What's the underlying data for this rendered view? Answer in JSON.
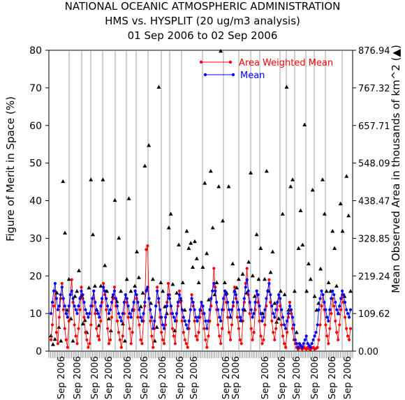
{
  "chart_data": {
    "type": "line",
    "title": [
      "NATIONAL OCEANIC ATMOSPHERIC ADMINISTRATION",
      "HMS vs. HYSPLIT (20 ug/m3 analysis)",
      "01 Sep 2006 to 02 Sep 2006"
    ],
    "ylabel": "Figure of Merit in Space (%)",
    "y2label": "Mean Observed Area in thousands of km^2 (▲)",
    "ylim": [
      0,
      80
    ],
    "y2lim": [
      0,
      876.94
    ],
    "yticks": [
      0,
      10,
      20,
      30,
      40,
      50,
      60,
      70,
      80
    ],
    "y2ticks": [
      "0.00",
      "109.62",
      "219.24",
      "328.85",
      "438.47",
      "548.09",
      "657.71",
      "767.32",
      "876.94"
    ],
    "xtick_label": "Sep 2006",
    "xtick_count": 17,
    "grid": "vertical separators",
    "legend_position": "top-right",
    "colors": {
      "awm": "#ff0000",
      "mean": "#0000ff",
      "area": "#000000"
    },
    "series": [
      {
        "name": "Area Weighted Mean",
        "values": [
          3,
          7,
          12,
          16,
          5,
          2,
          9,
          14,
          18,
          11,
          6,
          3,
          1,
          8,
          15,
          19,
          13,
          7,
          4,
          2,
          6,
          11,
          17,
          14,
          9,
          5,
          3,
          1,
          2,
          7,
          12,
          16,
          10,
          6,
          4,
          3,
          8,
          13,
          18,
          15,
          11,
          6,
          2,
          3,
          9,
          14,
          17,
          12,
          8,
          5,
          3,
          1,
          4,
          10,
          15,
          13,
          9,
          6,
          2,
          5,
          11,
          16,
          14,
          9,
          7,
          3,
          2,
          8,
          12,
          27,
          28,
          14,
          8,
          4,
          1,
          6,
          12,
          17,
          13,
          9,
          5,
          3,
          2,
          7,
          13,
          18,
          15,
          10,
          6,
          4,
          2,
          8,
          12,
          16,
          13,
          8,
          5,
          3,
          2,
          1,
          6,
          11,
          15,
          12,
          8,
          4,
          3,
          5,
          9,
          13,
          10,
          6,
          3,
          1,
          4,
          8,
          12,
          16,
          22,
          17,
          11,
          7,
          4,
          2,
          6,
          11,
          16,
          13,
          9,
          5,
          3,
          7,
          12,
          17,
          14,
          9,
          6,
          3,
          2,
          8,
          13,
          18,
          22,
          15,
          10,
          6,
          3,
          5,
          11,
          16,
          13,
          8,
          4,
          2,
          3,
          7,
          12,
          16,
          19,
          13,
          8,
          5,
          3,
          6,
          11,
          15,
          12,
          7,
          4,
          2,
          1,
          5,
          9,
          13,
          10,
          6,
          3,
          2,
          1,
          0.5,
          1,
          0.8,
          0.5,
          1.2,
          0.7,
          0.5,
          1,
          0.6,
          0.4,
          0.8,
          1,
          0.5,
          0.7,
          1,
          3,
          7,
          12,
          15,
          11,
          7,
          4,
          2,
          6,
          10,
          14,
          12,
          8,
          5,
          3,
          7,
          11,
          15,
          13,
          9,
          6,
          4,
          3,
          6
        ]
      },
      {
        "name": "Mean",
        "values": [
          10,
          13,
          16,
          18,
          14,
          11,
          12,
          15,
          17,
          14,
          12,
          10,
          9,
          12,
          15,
          16,
          14,
          12,
          11,
          10,
          12,
          14,
          16,
          15,
          13,
          11,
          10,
          9,
          10,
          12,
          14,
          16,
          13,
          11,
          10,
          9,
          12,
          14,
          17,
          16,
          14,
          12,
          10,
          11,
          13,
          15,
          16,
          14,
          12,
          10,
          9,
          8,
          10,
          13,
          15,
          14,
          12,
          10,
          9,
          11,
          13,
          16,
          15,
          13,
          11,
          9,
          8,
          10,
          13,
          16,
          17,
          14,
          11,
          9,
          6,
          8,
          12,
          16,
          14,
          11,
          9,
          7,
          6,
          9,
          12,
          15,
          14,
          12,
          10,
          9,
          8,
          10,
          13,
          15,
          14,
          11,
          9,
          8,
          7,
          6,
          8,
          11,
          14,
          13,
          11,
          9,
          8,
          9,
          11,
          13,
          12,
          10,
          8,
          6,
          8,
          11,
          14,
          16,
          18,
          16,
          13,
          11,
          9,
          8,
          11,
          14,
          16,
          15,
          13,
          11,
          9,
          11,
          13,
          16,
          15,
          13,
          11,
          9,
          8,
          11,
          14,
          17,
          19,
          16,
          13,
          11,
          9,
          10,
          13,
          16,
          15,
          12,
          10,
          8,
          9,
          11,
          14,
          16,
          18,
          15,
          12,
          10,
          9,
          11,
          13,
          15,
          14,
          11,
          9,
          7,
          6,
          8,
          10,
          12,
          11,
          9,
          7,
          3,
          2,
          1,
          2,
          1.5,
          1,
          2,
          3,
          4,
          2,
          1.5,
          1,
          2,
          3,
          4,
          5,
          7,
          11,
          14,
          16,
          15,
          13,
          11,
          9,
          8,
          11,
          14,
          16,
          15,
          13,
          11,
          10,
          12,
          14,
          16,
          15,
          13,
          11,
          10,
          9,
          11
        ]
      }
    ],
    "area_values": [
      45,
      20,
      35,
      170,
      70,
      30,
      495,
      345,
      120,
      210,
      95,
      30,
      160,
      175,
      235,
      160,
      80,
      90,
      55,
      185,
      500,
      340,
      190,
      120,
      75,
      190,
      500,
      250,
      175,
      95,
      60,
      160,
      440,
      145,
      330,
      175,
      80,
      30,
      210,
      445,
      175,
      120,
      190,
      290,
      215,
      130,
      170,
      540,
      180,
      600,
      140,
      210,
      30,
      70,
      770,
      200,
      175,
      130,
      110,
      360,
      400,
      195,
      60,
      170,
      310,
      150,
      200,
      120,
      350,
      300,
      315,
      245,
      320,
      270,
      200,
      120,
      245,
      490,
      285,
      150,
      525,
      360,
      165,
      200,
      480,
      875,
      380,
      200,
      170,
      480,
      100,
      255,
      175,
      185,
      210,
      90,
      225,
      120,
      170,
      260,
      520,
      220,
      160,
      340,
      210,
      300,
      110,
      210,
      525,
      175,
      230,
      290,
      140,
      85,
      95,
      175,
      400,
      165,
      770,
      120,
      480,
      500,
      175,
      55,
      300,
      410,
      310,
      660,
      175,
      255,
      210,
      470,
      160,
      120,
      140,
      240,
      500,
      400,
      175,
      200,
      175,
      350,
      300,
      190,
      110,
      430,
      350,
      160,
      510,
      395,
      175
    ]
  }
}
